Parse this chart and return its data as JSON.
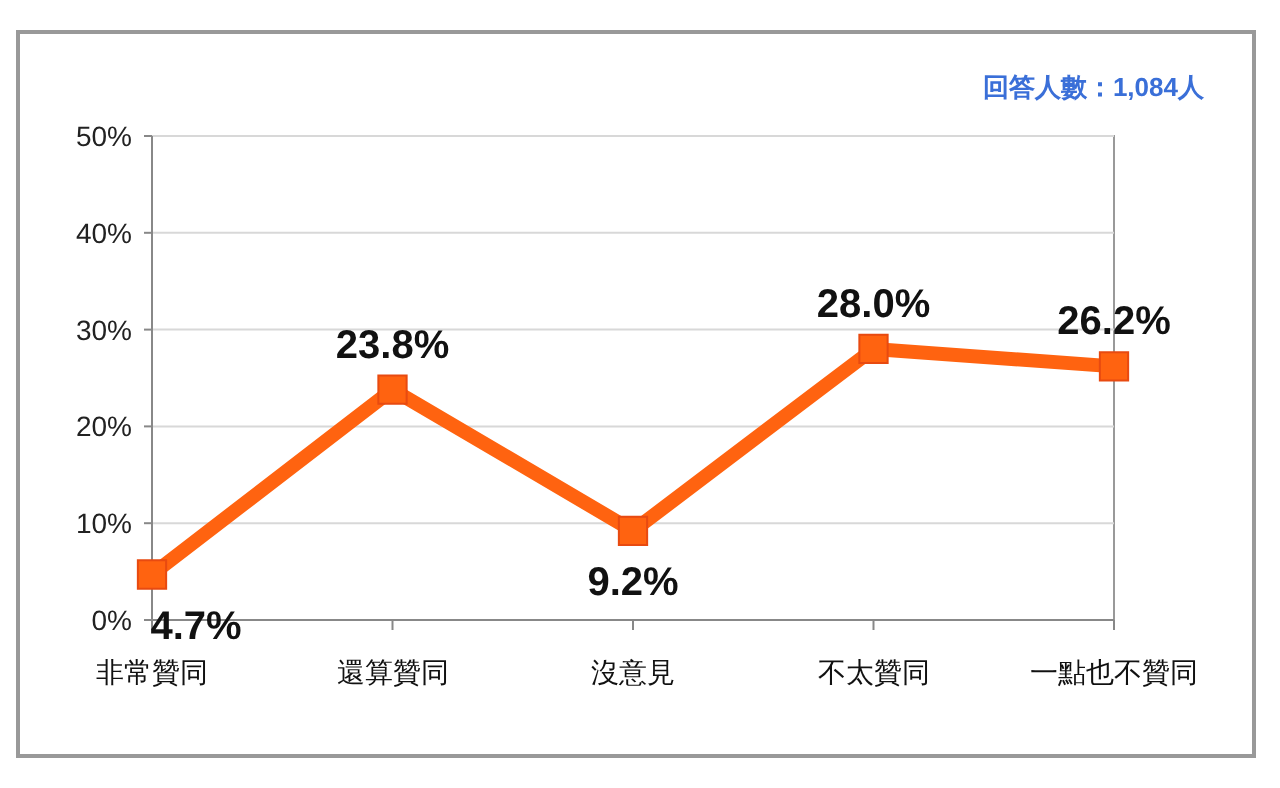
{
  "chart_data": {
    "type": "line",
    "annotations": [
      "回答人數：1,084人"
    ],
    "categories": [
      "非常贊同",
      "還算贊同",
      "沒意見",
      "不太贊同",
      "一點也不贊同"
    ],
    "series": [
      {
        "color": "#ff6310",
        "values": [
          4.7,
          23.8,
          9.2,
          28.0,
          26.2
        ],
        "value_labels": [
          "4.7%",
          "23.8%",
          "9.2%",
          "28.0%",
          "26.2%"
        ]
      }
    ],
    "ylim": [
      0,
      50
    ],
    "yticks": [
      {
        "value": 0,
        "label": "0%"
      },
      {
        "value": 10,
        "label": "10%"
      },
      {
        "value": 20,
        "label": "20%"
      },
      {
        "value": 30,
        "label": "30%"
      },
      {
        "value": 40,
        "label": "40%"
      },
      {
        "value": 50,
        "label": "50%"
      }
    ],
    "grid": "y",
    "marker": "square"
  }
}
